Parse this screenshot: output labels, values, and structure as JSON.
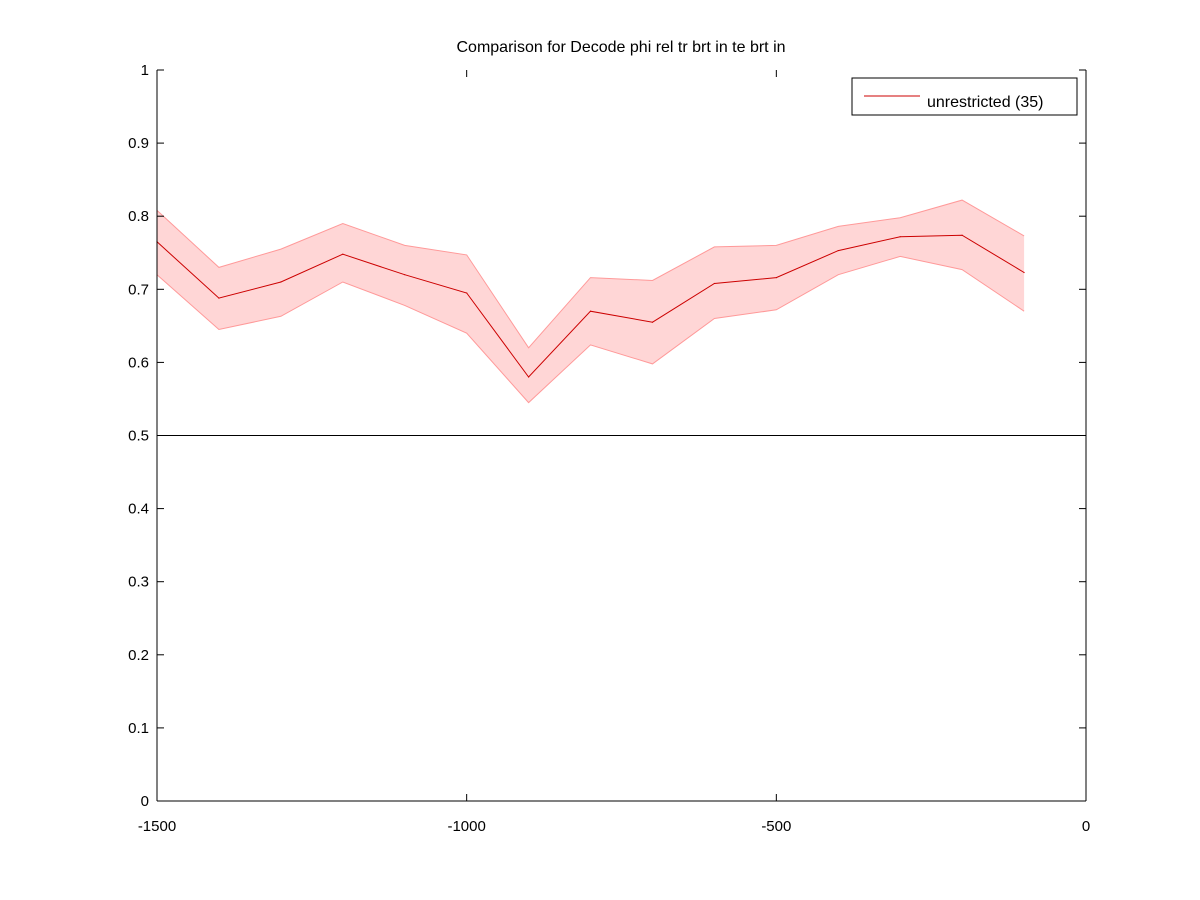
{
  "chart_data": {
    "type": "line",
    "title": "Comparison for Decode phi rel tr brt in te brt in",
    "xlabel": "",
    "ylabel": "",
    "xlim": [
      -1500,
      0
    ],
    "ylim": [
      0,
      1
    ],
    "xticks": [
      "-1500",
      "-1000",
      "-500",
      "0"
    ],
    "yticks": [
      "0",
      "0.1",
      "0.2",
      "0.3",
      "0.4",
      "0.5",
      "0.6",
      "0.7",
      "0.8",
      "0.9",
      "1"
    ],
    "grid": false,
    "legend_position": "top-right",
    "reference_line": {
      "y": 0.5,
      "color": "#000000"
    },
    "series": [
      {
        "name": "unrestricted (35)",
        "color": "#cc0000",
        "band_color": "#ffd6d6",
        "band_edge_color": "#ff9999",
        "x": [
          -1500,
          -1400,
          -1300,
          -1200,
          -1100,
          -1000,
          -900,
          -800,
          -700,
          -600,
          -500,
          -400,
          -300,
          -200,
          -100
        ],
        "values": [
          0.765,
          0.688,
          0.71,
          0.748,
          0.72,
          0.695,
          0.58,
          0.67,
          0.655,
          0.708,
          0.716,
          0.753,
          0.772,
          0.774,
          0.723
        ],
        "upper": [
          0.808,
          0.73,
          0.755,
          0.79,
          0.76,
          0.747,
          0.62,
          0.716,
          0.712,
          0.758,
          0.76,
          0.786,
          0.798,
          0.822,
          0.773
        ],
        "lower": [
          0.72,
          0.645,
          0.663,
          0.71,
          0.678,
          0.64,
          0.545,
          0.624,
          0.598,
          0.66,
          0.672,
          0.72,
          0.745,
          0.727,
          0.67
        ]
      }
    ]
  }
}
